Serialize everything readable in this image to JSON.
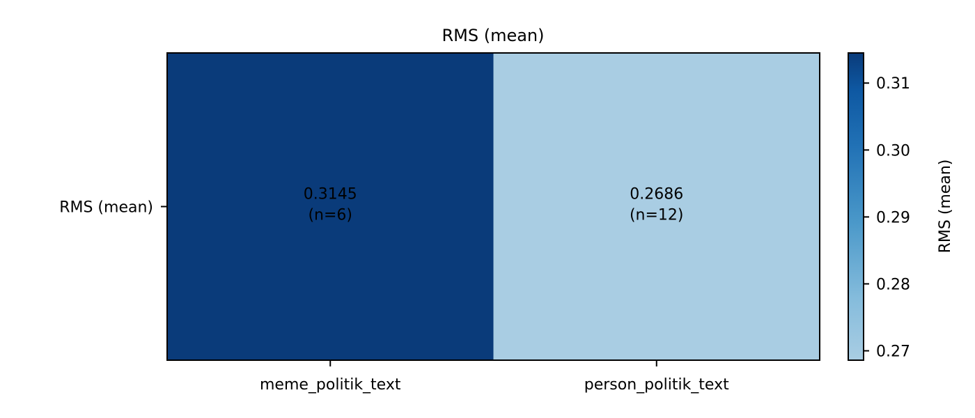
{
  "chart_data": {
    "type": "heatmap",
    "title": "RMS (mean)",
    "xlabel": "",
    "ylabel": "",
    "x_categories": [
      "meme_politik_text",
      "person_politik_text"
    ],
    "y_categories": [
      "RMS (mean)"
    ],
    "cells": [
      {
        "row": 0,
        "col": 0,
        "value": 0.3145,
        "n": 6,
        "value_label": "0.3145",
        "count_label": "(n=6)"
      },
      {
        "row": 0,
        "col": 1,
        "value": 0.2686,
        "n": 12,
        "value_label": "0.2686",
        "count_label": "(n=12)"
      }
    ],
    "colorbar": {
      "label": "RMS (mean)",
      "range": [
        0.2686,
        0.3145
      ],
      "ticks": [
        0.27,
        0.28,
        0.29,
        0.3,
        0.31
      ],
      "tick_labels": [
        "0.27",
        "0.28",
        "0.29",
        "0.30",
        "0.31"
      ],
      "colormap": "Blues"
    },
    "grid": false,
    "colors": {
      "low": "#a9cde3",
      "high": "#0a3b7a"
    }
  }
}
